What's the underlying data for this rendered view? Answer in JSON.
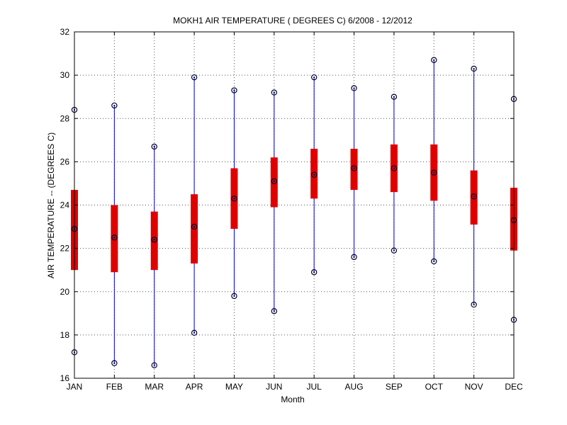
{
  "chart_data": {
    "type": "box",
    "title": "MOKH1  AIR TEMPERATURE ( DEGREES C) 6/2008 - 12/2012",
    "xlabel": "Month",
    "ylabel": "AIR TEMPERATURE -- (DEGREES C)",
    "categories": [
      "JAN",
      "FEB",
      "MAR",
      "APR",
      "MAY",
      "JUN",
      "JUL",
      "AUG",
      "SEP",
      "OCT",
      "NOV",
      "DEC"
    ],
    "yticks": [
      16,
      18,
      20,
      22,
      24,
      26,
      28,
      30,
      32
    ],
    "ylim": [
      16,
      32
    ],
    "grid": true,
    "series": [
      {
        "min": [
          17.2,
          16.7,
          16.6,
          18.1,
          19.8,
          19.1,
          20.9,
          21.6,
          21.9,
          21.4,
          19.4,
          18.7
        ],
        "q1": [
          21.0,
          20.9,
          21.0,
          21.3,
          22.9,
          23.9,
          24.3,
          24.7,
          24.6,
          24.2,
          23.1,
          21.9
        ],
        "median": [
          22.9,
          22.5,
          22.4,
          23.0,
          24.3,
          25.1,
          25.4,
          25.7,
          25.7,
          25.5,
          24.4,
          23.3
        ],
        "q3": [
          24.7,
          24.0,
          23.7,
          24.5,
          25.7,
          26.2,
          26.6,
          26.6,
          26.8,
          26.8,
          25.6,
          24.8
        ],
        "max": [
          28.4,
          28.6,
          26.7,
          29.9,
          29.3,
          29.2,
          29.9,
          29.4,
          29.0,
          30.7,
          30.3,
          28.9
        ]
      }
    ],
    "colors": {
      "whisker": "#0000cc",
      "box": "#e00000",
      "marker": "#000033",
      "grid": "#555555"
    }
  }
}
